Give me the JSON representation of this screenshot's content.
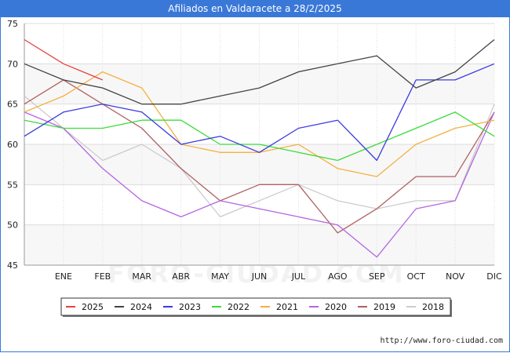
{
  "title": "Afiliados en Valdaracete a 28/2/2025",
  "source_text": "http://www.foro-ciudad.com",
  "watermark": "FORO-CIUDAD.COM",
  "chart_data": {
    "type": "line",
    "title": "Afiliados en Valdaracete a 28/2/2025",
    "xlabel": "",
    "ylabel": "",
    "categories": [
      "",
      "ENE",
      "FEB",
      "MAR",
      "ABR",
      "MAY",
      "JUN",
      "JUL",
      "AGO",
      "SEP",
      "OCT",
      "NOV",
      "DIC"
    ],
    "ylim": [
      45,
      75
    ],
    "yticks": [
      45,
      50,
      55,
      60,
      65,
      70,
      75
    ],
    "grid": true,
    "legend_position": "bottom",
    "series": [
      {
        "name": "2025",
        "color": "#e8413e",
        "values": [
          73,
          70,
          68,
          null,
          null,
          null,
          null,
          null,
          null,
          null,
          null,
          null,
          null
        ]
      },
      {
        "name": "2024",
        "color": "#444444",
        "values": [
          70,
          68,
          67,
          65,
          65,
          66,
          67,
          69,
          70,
          71,
          67,
          69,
          73
        ]
      },
      {
        "name": "2023",
        "color": "#3a3ae0",
        "values": [
          61,
          64,
          65,
          64,
          60,
          61,
          59,
          62,
          63,
          58,
          68,
          68,
          70
        ]
      },
      {
        "name": "2022",
        "color": "#3cdc3c",
        "values": [
          63,
          62,
          62,
          63,
          63,
          60,
          60,
          59,
          58,
          60,
          62,
          64,
          61
        ]
      },
      {
        "name": "2021",
        "color": "#f5b041",
        "values": [
          64,
          66,
          69,
          67,
          60,
          59,
          59,
          60,
          57,
          56,
          60,
          62,
          63
        ]
      },
      {
        "name": "2020",
        "color": "#b565e0",
        "values": [
          64,
          62,
          57,
          53,
          51,
          53,
          52,
          51,
          50,
          46,
          52,
          53,
          64
        ]
      },
      {
        "name": "2019",
        "color": "#b06060",
        "values": [
          65,
          68,
          65,
          62,
          57,
          53,
          55,
          55,
          49,
          52,
          56,
          56,
          64
        ]
      },
      {
        "name": "2018",
        "color": "#cccccc",
        "values": [
          66,
          62,
          58,
          60,
          57,
          51,
          53,
          55,
          53,
          52,
          53,
          53,
          65
        ]
      }
    ]
  }
}
